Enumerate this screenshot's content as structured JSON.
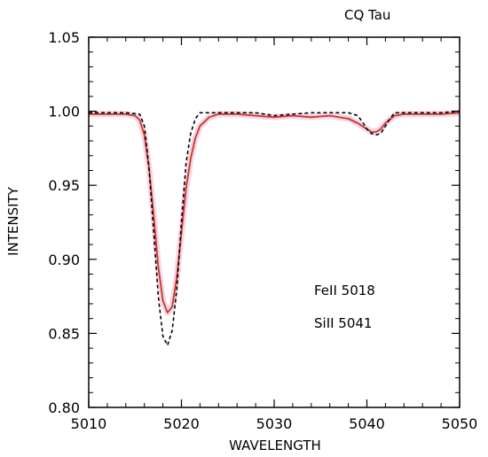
{
  "chart_data": {
    "type": "line",
    "title": "CQ Tau",
    "xlabel": "WAVELENGTH",
    "ylabel": "INTENSITY",
    "xlim": [
      5010,
      5050
    ],
    "ylim": [
      0.8,
      1.05
    ],
    "x_ticks": [
      "5010",
      "5020",
      "5030",
      "5040",
      "5050"
    ],
    "y_ticks": [
      "0.80",
      "0.85",
      "0.90",
      "0.95",
      "1.00",
      "1.05"
    ],
    "annotations": [
      "FeII 5018",
      "SiII 5041"
    ],
    "colors": {
      "observed": "#c0392b",
      "model": "#000000",
      "band": "#f7c9dc"
    },
    "series": [
      {
        "style": "solid",
        "x": [
          5010,
          5012,
          5014,
          5015,
          5015.5,
          5016,
          5016.5,
          5017,
          5017.5,
          5018,
          5018.5,
          5019,
          5019.5,
          5020,
          5020.5,
          5021,
          5021.5,
          5022,
          5023,
          5024,
          5026,
          5028,
          5030,
          5032,
          5034,
          5036,
          5038,
          5039,
          5040,
          5040.5,
          5041,
          5041.5,
          5042,
          5043,
          5044,
          5046,
          5048,
          5050
        ],
        "y": [
          0.998,
          0.998,
          0.998,
          0.997,
          0.994,
          0.984,
          0.962,
          0.93,
          0.895,
          0.872,
          0.864,
          0.868,
          0.888,
          0.918,
          0.948,
          0.968,
          0.982,
          0.99,
          0.996,
          0.998,
          0.998,
          0.997,
          0.996,
          0.997,
          0.996,
          0.997,
          0.995,
          0.992,
          0.988,
          0.986,
          0.986,
          0.988,
          0.992,
          0.997,
          0.998,
          0.998,
          0.998,
          0.999
        ]
      },
      {
        "style": "dashed",
        "x": [
          5010,
          5012,
          5014,
          5015.5,
          5016,
          5016.5,
          5017,
          5017.5,
          5018,
          5018.5,
          5019,
          5019.5,
          5020,
          5020.5,
          5021,
          5021.5,
          5022,
          5023,
          5025,
          5028,
          5030,
          5032,
          5034,
          5036,
          5038,
          5039,
          5039.5,
          5040,
          5040.5,
          5041,
          5041.5,
          5042,
          5042.5,
          5043,
          5044,
          5046,
          5048,
          5050
        ],
        "y": [
          0.999,
          0.999,
          0.999,
          0.998,
          0.99,
          0.962,
          0.92,
          0.875,
          0.848,
          0.842,
          0.852,
          0.88,
          0.925,
          0.965,
          0.985,
          0.995,
          0.999,
          0.999,
          0.999,
          0.999,
          0.997,
          0.998,
          0.999,
          0.999,
          0.999,
          0.997,
          0.993,
          0.988,
          0.985,
          0.984,
          0.985,
          0.99,
          0.995,
          0.999,
          0.999,
          0.999,
          0.999,
          1.0
        ]
      }
    ]
  }
}
